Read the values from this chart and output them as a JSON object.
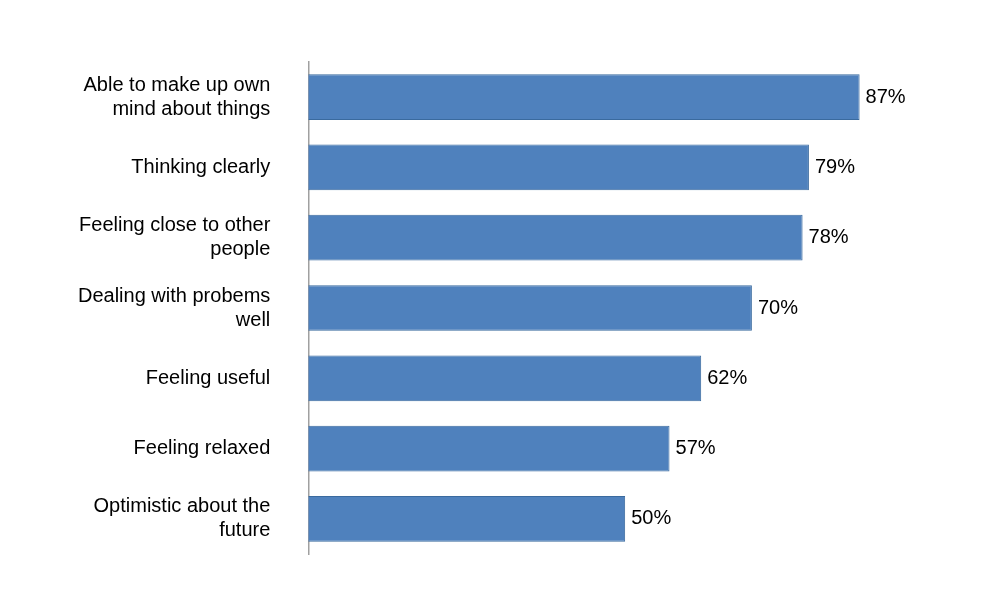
{
  "chart_data": {
    "type": "bar",
    "orientation": "horizontal",
    "categories": [
      "Able to make up own mind about things",
      "Thinking clearly",
      "Feeling close to other people",
      "Dealing with probems well",
      "Feeling useful",
      "Feeling relaxed",
      "Optimistic about the future"
    ],
    "values": [
      87,
      79,
      78,
      70,
      62,
      57,
      50
    ],
    "value_labels": [
      "87%",
      "79%",
      "78%",
      "70%",
      "62%",
      "57%",
      "50%"
    ],
    "color": "#4f81bd",
    "tick_labels": false,
    "grid": false,
    "legend": false
  }
}
